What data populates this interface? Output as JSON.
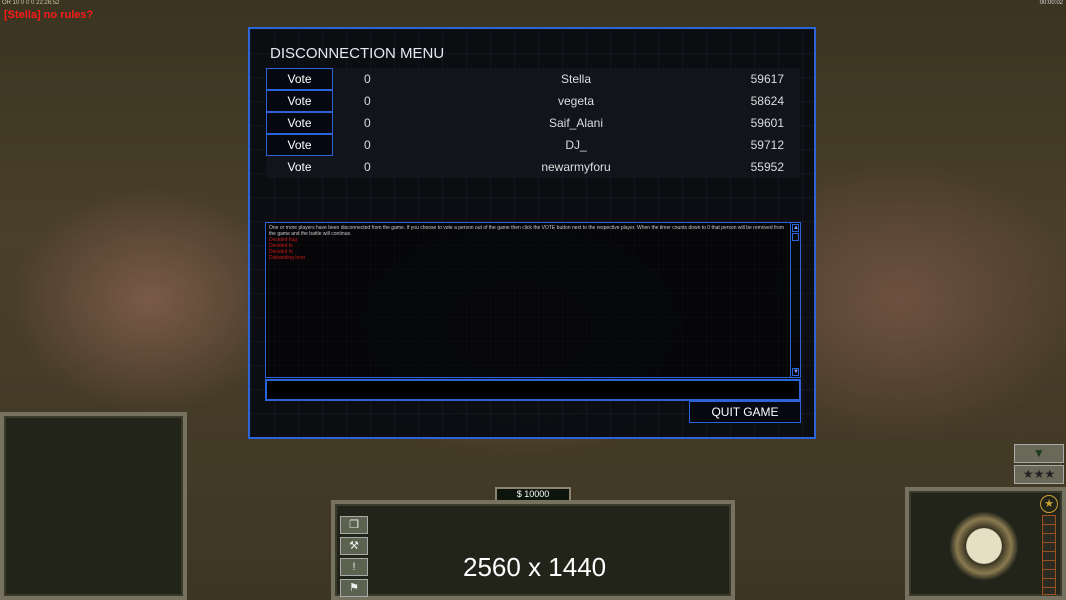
{
  "hud": {
    "top_status": "OR 10 0 0 0 22:26:52",
    "clock": "00:00:02",
    "chat_message": "[Stella] no rules?",
    "money": "$ 10000",
    "overlay": "2560 x 1440"
  },
  "dialog": {
    "title": "DISCONNECTION MENU",
    "players": [
      {
        "vote": "Vote",
        "count": "0",
        "name": "Stella",
        "ping": "59617"
      },
      {
        "vote": "Vote",
        "count": "0",
        "name": "vegeta",
        "ping": "58624"
      },
      {
        "vote": "Vote",
        "count": "0",
        "name": "Saif_Alani",
        "ping": "59601"
      },
      {
        "vote": "Vote",
        "count": "0",
        "name": "DJ_",
        "ping": "59712"
      },
      {
        "vote": "Vote",
        "count": "0",
        "name": "newarmyforu",
        "ping": "55952"
      }
    ],
    "info": "One or more players have been disconnected from the game. If you choose to vote a person out of the game then click the VOTE button next to the respective player. When the timer counts down to 0 that person will be removed from the game and the battle will continue.",
    "log": [
      "Decided hug",
      "Decided hi",
      "Decided hi",
      "Disbanding host"
    ],
    "input_value": "",
    "quit": "QUIT GAME"
  },
  "icons": [
    "windows-icon",
    "wrench-icon",
    "alert-icon",
    "sign-icon",
    "arrow-down-icon",
    "stars-icon",
    "general-star-icon"
  ]
}
